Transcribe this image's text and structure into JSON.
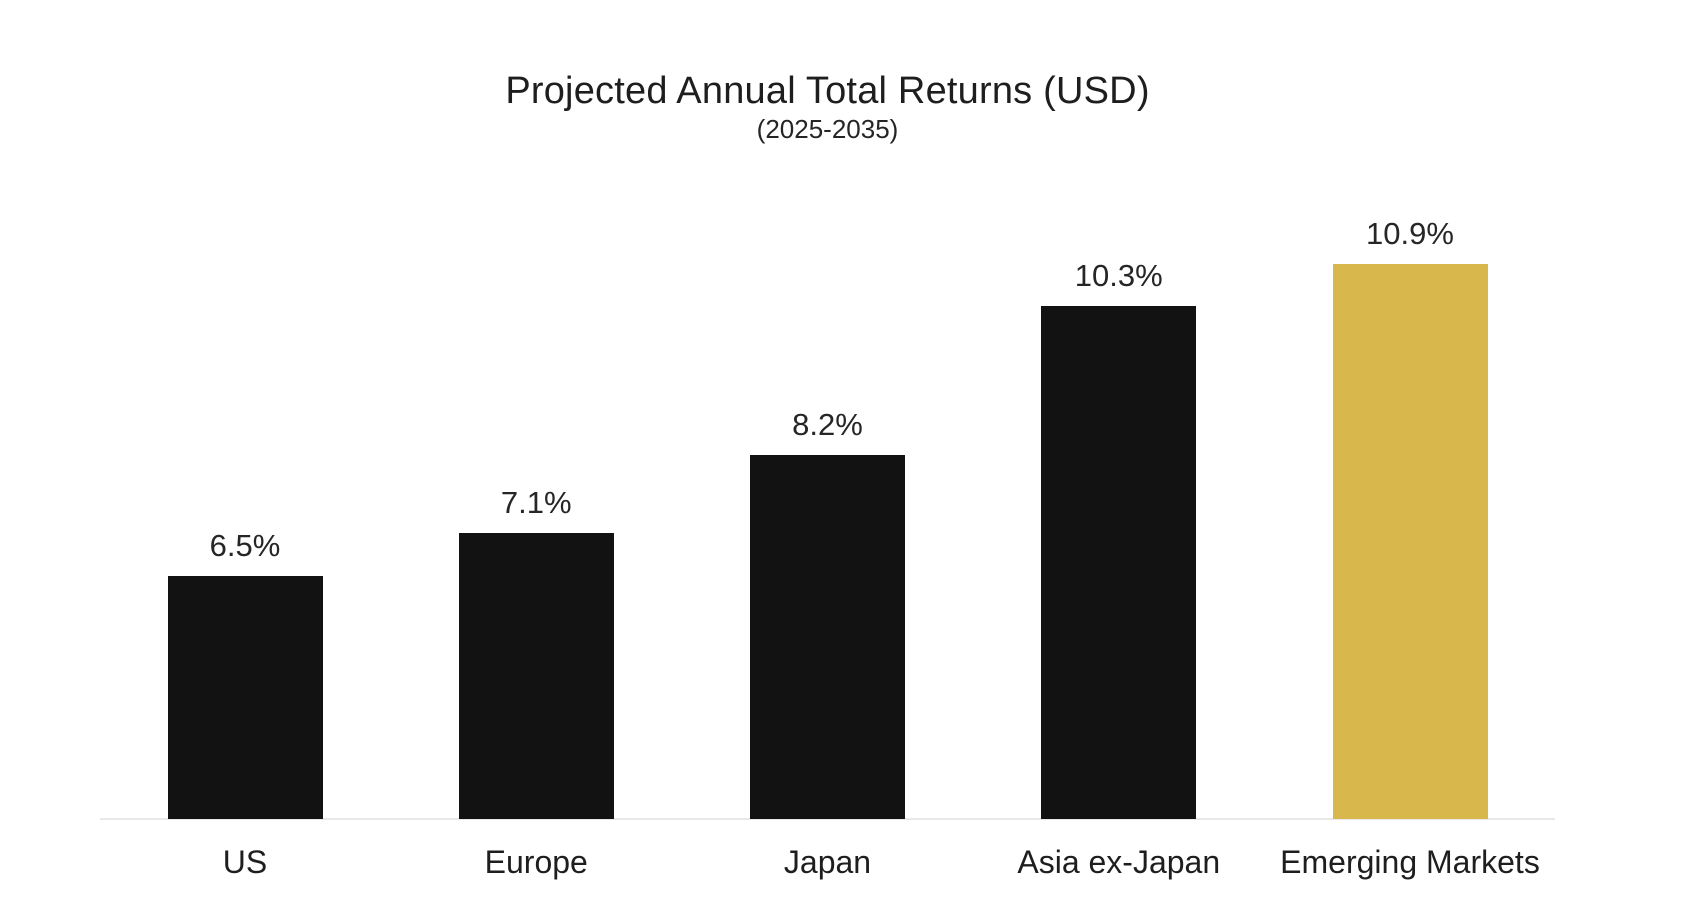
{
  "chart_data": {
    "type": "bar",
    "title": "Projected Annual Total Returns (USD)",
    "subtitle": "(2025-2035)",
    "categories": [
      "US",
      "Europe",
      "Japan",
      "Asia ex-Japan",
      "Emerging Markets"
    ],
    "values": [
      6.5,
      7.1,
      8.2,
      10.3,
      10.9
    ],
    "value_labels": [
      "6.5%",
      "7.1%",
      "8.2%",
      "10.3%",
      "10.9%"
    ],
    "bar_colors": [
      "#121212",
      "#121212",
      "#121212",
      "#121212",
      "#d8b84c"
    ],
    "highlighted_category": "Emerging Markets",
    "highlight_color": "#d8b84c",
    "default_bar_color": "#121212",
    "xlabel": "",
    "ylabel": "",
    "ylim": [
      3,
      11.5
    ],
    "grid": false,
    "legend": false,
    "axis_line_color": "#e8e8e8",
    "text_color": "#1e1e1e"
  }
}
